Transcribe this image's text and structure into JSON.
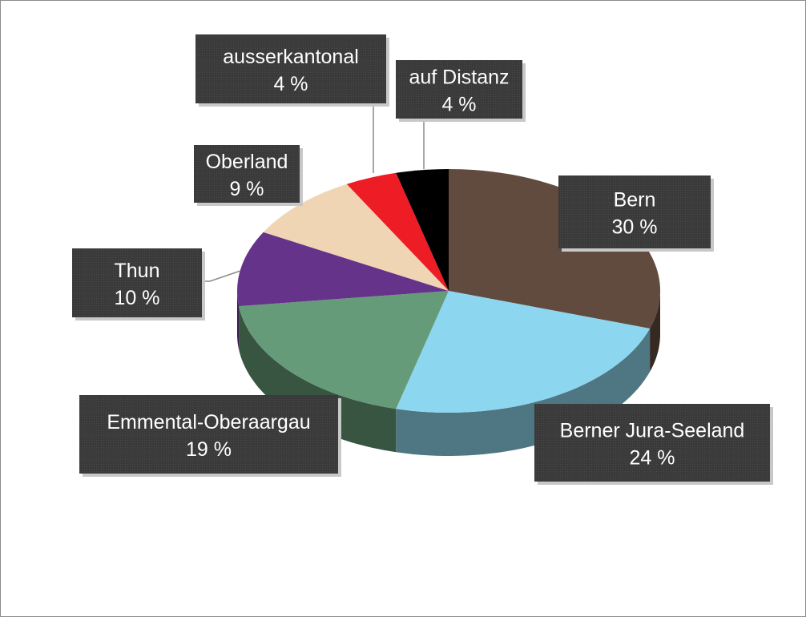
{
  "chart_data": {
    "type": "pie",
    "style": "3d-pie",
    "legend": "none",
    "slices": [
      {
        "label": "Bern",
        "value": 30,
        "display": "30 %",
        "color": "#614a3e"
      },
      {
        "label": "Berner Jura-Seeland",
        "value": 24,
        "display": "24 %",
        "color": "#8dd6ef"
      },
      {
        "label": "Emmental-Oberaargau",
        "value": 19,
        "display": "19 %",
        "color": "#659b78"
      },
      {
        "label": "Thun",
        "value": 10,
        "display": "10 %",
        "color": "#66338a"
      },
      {
        "label": "Oberland",
        "value": 9,
        "display": "9 %",
        "color": "#efd5b4"
      },
      {
        "label": "ausserkantonal",
        "value": 4,
        "display": "4 %",
        "color": "#ee1c25"
      },
      {
        "label": "auf Distanz",
        "value": 4,
        "display": "4 %",
        "color": "#000000"
      }
    ]
  }
}
